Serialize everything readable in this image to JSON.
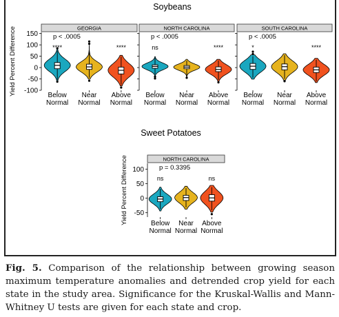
{
  "figure": {
    "label": "Fig. 5.",
    "caption": "Comparison of the relationship between growing season maximum temperature anomalies and detrended crop yield for each state in the study area. Significance for the Kruskal-Wallis and Mann-Whitney U tests are given for each state and crop."
  },
  "colors": {
    "below": "#1aa7bf",
    "near": "#e6b31e",
    "above": "#f0521f",
    "strip": "#d9d9d9"
  },
  "chart_data": [
    {
      "type": "violin",
      "title": "Soybeans",
      "ylabel": "Yield Percent Difference",
      "ylim": [
        -100,
        155
      ],
      "yticks": [
        150,
        100,
        50,
        0,
        -50,
        -100
      ],
      "categories": [
        "Below\nNormal",
        "Near\nNormal",
        "Above\nNormal"
      ],
      "panels": [
        {
          "name": "GEORGIA",
          "pvalue": "p < .0005",
          "significance": [
            "****",
            "",
            "****"
          ],
          "series": [
            {
              "name": "Below Normal",
              "median": 10,
              "q1": -5,
              "q3": 22,
              "min": -55,
              "max": 75,
              "outliers": [
                85,
                -62
              ]
            },
            {
              "name": "Near Normal",
              "median": 3,
              "q1": -8,
              "q3": 15,
              "min": -45,
              "max": 95,
              "outliers": [
                105,
                115,
                -58
              ]
            },
            {
              "name": "Above Normal",
              "median": -12,
              "q1": -28,
              "q3": 2,
              "min": -75,
              "max": 48,
              "outliers": [
                -88
              ]
            }
          ]
        },
        {
          "name": "NORTH CAROLINA",
          "pvalue": "p < .0005",
          "significance": [
            "ns",
            "",
            "****"
          ],
          "series": [
            {
              "name": "Below Normal",
              "median": 5,
              "q1": -3,
              "q3": 12,
              "min": -30,
              "max": 42,
              "outliers": [
                -40,
                -48
              ]
            },
            {
              "name": "Near Normal",
              "median": 2,
              "q1": -5,
              "q3": 9,
              "min": -35,
              "max": 30,
              "outliers": [
                -45
              ]
            },
            {
              "name": "Above Normal",
              "median": -8,
              "q1": -18,
              "q3": 3,
              "min": -55,
              "max": 30,
              "outliers": [
                -65
              ]
            }
          ]
        },
        {
          "name": "SOUTH CAROLINA",
          "pvalue": "p < .0005",
          "significance": [
            "*",
            "",
            "****"
          ],
          "series": [
            {
              "name": "Below Normal",
              "median": 6,
              "q1": -8,
              "q3": 18,
              "min": -45,
              "max": 50,
              "outliers": [
                70,
                60
              ]
            },
            {
              "name": "Near Normal",
              "median": 4,
              "q1": -10,
              "q3": 16,
              "min": -50,
              "max": 55,
              "outliers": [
                -60
              ]
            },
            {
              "name": "Above Normal",
              "median": -10,
              "q1": -22,
              "q3": 2,
              "min": -60,
              "max": 35,
              "outliers": []
            }
          ]
        }
      ]
    },
    {
      "type": "violin",
      "title": "Sweet Potatoes",
      "ylabel": "Yield Percent Difference",
      "ylim": [
        -65,
        120
      ],
      "yticks": [
        100,
        50,
        0,
        -50
      ],
      "categories": [
        "Below\nNormal",
        "Near\nNormal",
        "Above\nNormal"
      ],
      "panels": [
        {
          "name": "NORTH CAROLINA",
          "pvalue": "p = 0.3395",
          "significance": [
            "ns",
            "",
            "ns"
          ],
          "series": [
            {
              "name": "Below Normal",
              "median": -3,
              "q1": -12,
              "q3": 5,
              "min": -38,
              "max": 32,
              "outliers": []
            },
            {
              "name": "Near Normal",
              "median": 2,
              "q1": -8,
              "q3": 10,
              "min": -32,
              "max": 35,
              "outliers": []
            },
            {
              "name": "Above Normal",
              "median": 1,
              "q1": -10,
              "q3": 12,
              "min": -42,
              "max": 38,
              "outliers": [
                -55
              ]
            }
          ]
        }
      ]
    }
  ]
}
